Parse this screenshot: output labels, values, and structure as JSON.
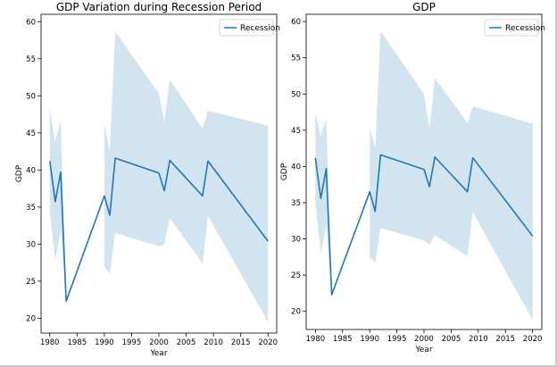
{
  "chart_data": [
    {
      "type": "line",
      "title": "GDP Variation during Recession Period",
      "xlabel": "Year",
      "ylabel": "GDP",
      "xlim": [
        1978.4,
        2021.6
      ],
      "ylim": [
        18.0,
        61.0
      ],
      "xticks": [
        1980,
        1985,
        1990,
        1995,
        2000,
        2005,
        2010,
        2015,
        2020
      ],
      "yticks": [
        20,
        25,
        30,
        35,
        40,
        45,
        50,
        55,
        60
      ],
      "grid": false,
      "legend_position": "top-right",
      "series": [
        {
          "name": "Recession",
          "color": "#1f77b4",
          "band_color": "#1f77b4",
          "band_opacity": 0.2,
          "segments": [
            {
              "x": [
                1980,
                1981,
                1982,
                1983
              ],
              "y": [
                41.2,
                35.7,
                39.7,
                22.3
              ],
              "lower": [
                34.3,
                27.8,
                31.8,
                22.3
              ],
              "upper": [
                48.2,
                43.8,
                46.7,
                22.3
              ]
            },
            {
              "x": [
                1983,
                1990
              ],
              "y": [
                22.3,
                36.5
              ],
              "lower": [
                22.3,
                36.5
              ],
              "upper": [
                22.3,
                36.5
              ]
            },
            {
              "x": [
                1990,
                1991,
                1992,
                2000,
                2001,
                2002,
                2008,
                2009,
                2020
              ],
              "y": [
                36.5,
                33.9,
                41.6,
                39.6,
                37.2,
                41.3,
                36.5,
                41.2,
                30.4
              ],
              "lower": [
                27.0,
                26.0,
                31.5,
                29.7,
                29.9,
                33.5,
                27.4,
                33.8,
                19.5
              ],
              "upper": [
                46.1,
                42.5,
                58.7,
                50.3,
                46.4,
                52.2,
                45.6,
                48.0,
                46.0
              ]
            }
          ]
        }
      ]
    },
    {
      "type": "line",
      "title": "GDP",
      "xlabel": "Year",
      "ylabel": "GDP",
      "xlim": [
        1978.3,
        2021.7
      ],
      "ylim": [
        17.5,
        61.0
      ],
      "xticks": [
        1980,
        1985,
        1990,
        1995,
        2000,
        2005,
        2010,
        2015,
        2020
      ],
      "yticks": [
        20,
        25,
        30,
        35,
        40,
        45,
        50,
        55,
        60
      ],
      "grid": false,
      "legend_position": "top-right",
      "series": [
        {
          "name": "Recession",
          "color": "#1f77b4",
          "band_color": "#1f77b4",
          "band_opacity": 0.2,
          "segments": [
            {
              "x": [
                1980,
                1981,
                1982,
                1983
              ],
              "y": [
                41.2,
                35.6,
                39.7,
                22.3
              ],
              "lower": [
                34.9,
                28.0,
                31.8,
                22.3
              ],
              "upper": [
                47.5,
                44.2,
                46.6,
                22.3
              ]
            },
            {
              "x": [
                1983,
                1990
              ],
              "y": [
                22.3,
                36.5
              ],
              "lower": [
                22.3,
                36.5
              ],
              "upper": [
                22.3,
                36.5
              ]
            },
            {
              "x": [
                1990,
                1991,
                1992,
                2000,
                2001,
                2002,
                2008,
                2009,
                2020
              ],
              "y": [
                36.5,
                33.8,
                41.6,
                39.6,
                37.2,
                41.3,
                36.5,
                41.2,
                30.4
              ],
              "lower": [
                27.5,
                26.7,
                31.5,
                29.8,
                29.2,
                30.5,
                27.6,
                33.7,
                18.8
              ],
              "upper": [
                45.5,
                42.5,
                58.7,
                50.0,
                45.2,
                52.2,
                46.0,
                48.3,
                45.9
              ]
            }
          ]
        }
      ]
    }
  ]
}
